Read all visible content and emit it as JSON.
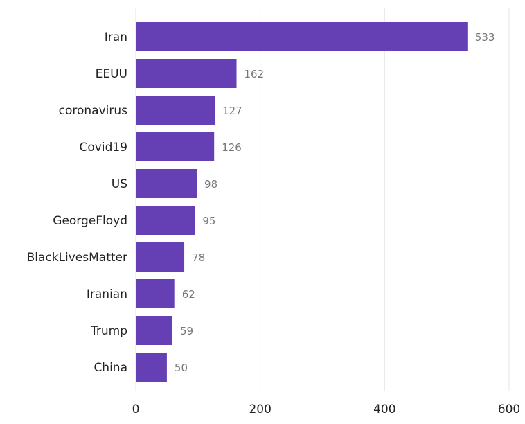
{
  "chart_data": {
    "type": "bar",
    "orientation": "horizontal",
    "categories": [
      "Iran",
      "EEUU",
      "coronavirus",
      "Covid19",
      "US",
      "GeorgeFloyd",
      "BlackLivesMatter",
      "Iranian",
      "Trump",
      "China"
    ],
    "values": [
      533,
      162,
      127,
      126,
      98,
      95,
      78,
      62,
      59,
      50
    ],
    "xlim": [
      0,
      600
    ],
    "xticks": [
      0,
      200,
      400,
      600
    ],
    "grid": true,
    "legend": "none",
    "colors": {
      "bar": "#6440b4",
      "value_label": "#777777",
      "grid": "#e6e6e6"
    },
    "title": "",
    "xlabel": "",
    "ylabel": ""
  }
}
